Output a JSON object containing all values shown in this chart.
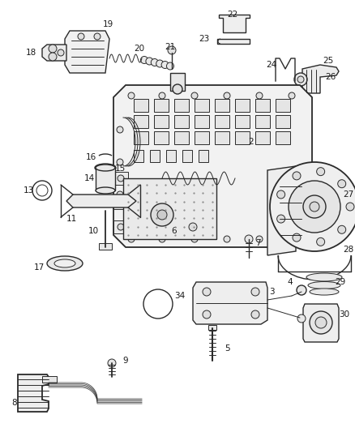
{
  "background_color": "#ffffff",
  "line_color": "#2a2a2a",
  "label_color": "#1a1a1a",
  "label_fontsize": 7.5,
  "fig_w": 4.38,
  "fig_h": 5.33,
  "dpi": 100
}
